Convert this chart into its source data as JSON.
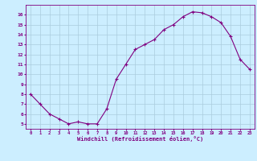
{
  "x": [
    0,
    1,
    2,
    3,
    4,
    5,
    6,
    7,
    8,
    9,
    10,
    11,
    12,
    13,
    14,
    15,
    16,
    17,
    18,
    19,
    20,
    21,
    22,
    23
  ],
  "y": [
    8.0,
    7.0,
    6.0,
    5.5,
    5.0,
    5.2,
    5.0,
    5.0,
    6.5,
    9.5,
    11.0,
    12.5,
    13.0,
    13.5,
    14.5,
    15.0,
    15.8,
    16.3,
    16.2,
    15.8,
    15.2,
    13.8,
    11.5,
    10.5
  ],
  "line_color": "#800080",
  "marker": "+",
  "marker_size": 3,
  "bg_color": "#cceeff",
  "grid_color": "#aaccdd",
  "xlabel": "Windchill (Refroidissement éolien,°C)",
  "xlabel_color": "#800080",
  "ylabel_ticks": [
    5,
    6,
    7,
    8,
    9,
    10,
    11,
    12,
    13,
    14,
    15,
    16
  ],
  "xlim": [
    -0.5,
    23.5
  ],
  "ylim": [
    4.5,
    17.0
  ],
  "xticks": [
    0,
    1,
    2,
    3,
    4,
    5,
    6,
    7,
    8,
    9,
    10,
    11,
    12,
    13,
    14,
    15,
    16,
    17,
    18,
    19,
    20,
    21,
    22,
    23
  ],
  "tick_color": "#800080",
  "font": "monospace"
}
